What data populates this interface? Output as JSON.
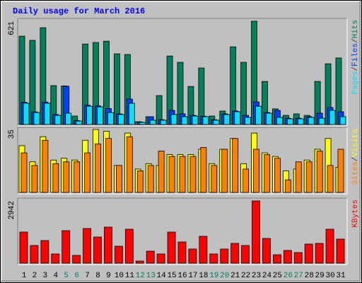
{
  "chart_data": [
    {
      "type": "bar",
      "title": "Daily usage for March 2016",
      "ylim": [
        0,
        621
      ],
      "yticks": [
        621
      ],
      "legend_separator": "/",
      "series": [
        {
          "name": "Pages",
          "color": "#00e0ff",
          "values": [
            128,
            72,
            128,
            55,
            68,
            21,
            110,
            106,
            72,
            60,
            128,
            13,
            26,
            26,
            60,
            47,
            51,
            47,
            26,
            60,
            77,
            43,
            110,
            68,
            43,
            34,
            34,
            43,
            38,
            85,
            47
          ]
        },
        {
          "name": "Files",
          "color": "#0040ff",
          "values": [
            134,
            76,
            135,
            60,
            230,
            24,
            116,
            112,
            96,
            64,
            153,
            15,
            47,
            29,
            85,
            64,
            55,
            50,
            29,
            64,
            81,
            55,
            136,
            72,
            85,
            38,
            38,
            47,
            68,
            102,
            77
          ]
        },
        {
          "name": "Hits",
          "color": "#00805c",
          "values": [
            531,
            506,
            582,
            234,
            232,
            51,
            484,
            493,
            501,
            425,
            421,
            17,
            47,
            174,
            412,
            374,
            229,
            340,
            51,
            81,
            467,
            374,
            621,
            259,
            94,
            55,
            64,
            55,
            259,
            365,
            400
          ]
        }
      ]
    },
    {
      "type": "bar",
      "ylim": [
        0,
        35
      ],
      "yticks": [
        35
      ],
      "legend_separator": "/",
      "series": [
        {
          "name": "Sites",
          "color": "#ff8000",
          "values": [
            22,
            15,
            29,
            16,
            17,
            17,
            22,
            27,
            30,
            15,
            31,
            12,
            15,
            23,
            20,
            20,
            20,
            25,
            15,
            24,
            30,
            13,
            24,
            21,
            19,
            7,
            17,
            17,
            23,
            15,
            24
          ]
        },
        {
          "name": "Visits",
          "color": "#ffff00",
          "values": [
            26,
            17,
            31,
            18,
            19,
            18,
            29,
            35,
            34,
            15,
            33,
            13,
            16,
            15,
            21,
            21,
            21,
            24,
            16,
            24,
            30,
            16,
            33,
            22,
            20,
            12,
            13,
            18,
            24,
            30,
            14
          ]
        }
      ]
    },
    {
      "type": "bar",
      "ylim": [
        0,
        2942
      ],
      "yticks": [
        2942
      ],
      "categories": [
        "1",
        "2",
        "3",
        "4",
        "5",
        "6",
        "7",
        "8",
        "9",
        "10",
        "11",
        "12",
        "13",
        "14",
        "15",
        "16",
        "17",
        "18",
        "19",
        "20",
        "21",
        "22",
        "23",
        "24",
        "25",
        "26",
        "27",
        "28",
        "29",
        "30",
        "31"
      ],
      "category_colors": [
        "#000000",
        "#000000",
        "#000000",
        "#000000",
        "#00805c",
        "#00805c",
        "#000000",
        "#000000",
        "#000000",
        "#000000",
        "#000000",
        "#00805c",
        "#00805c",
        "#000000",
        "#000000",
        "#000000",
        "#000000",
        "#000000",
        "#00805c",
        "#00805c",
        "#000000",
        "#000000",
        "#000000",
        "#000000",
        "#000000",
        "#00805c",
        "#00805c",
        "#000000",
        "#000000",
        "#000000",
        "#000000"
      ],
      "series": [
        {
          "name": "KBytes",
          "color": "#ff0000",
          "values": [
            1471,
            836,
            1070,
            435,
            1538,
            368,
            1638,
            1237,
            1705,
            802,
            1605,
            100,
            568,
            435,
            1471,
            1003,
            669,
            1270,
            435,
            669,
            936,
            836,
            2942,
            1170,
            401,
            602,
            502,
            903,
            936,
            1605,
            1137
          ]
        }
      ]
    }
  ]
}
